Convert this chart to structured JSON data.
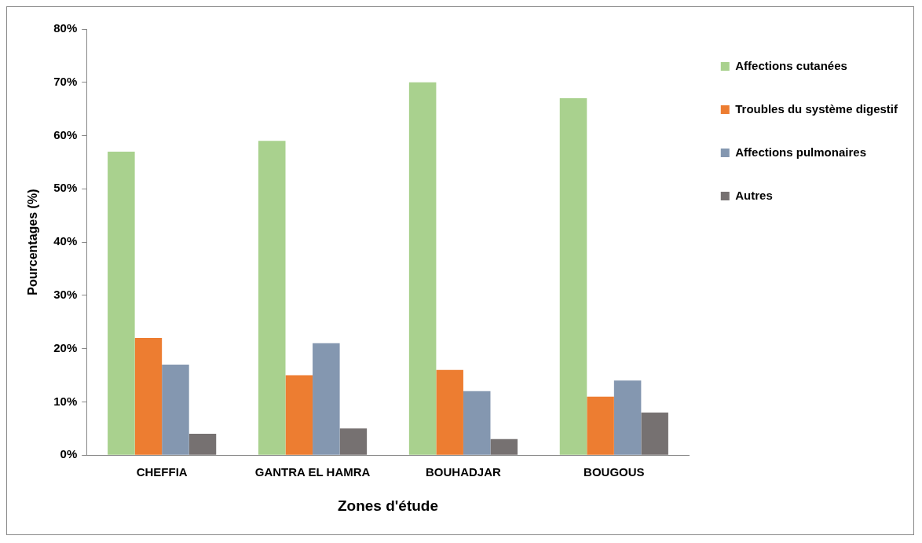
{
  "chart_data": {
    "type": "bar",
    "xlabel": "Zones d'étude",
    "ylabel": "Pourcentages (%)",
    "categories": [
      "CHEFFIA",
      "GANTRA EL HAMRA",
      "BOUHADJAR",
      "BOUGOUS"
    ],
    "series": [
      {
        "name": "Affections cutanées",
        "color": "#a9d18e",
        "values": [
          57,
          59,
          70,
          67
        ]
      },
      {
        "name": "Troubles du système digestif",
        "color": "#ed7d31",
        "values": [
          22,
          15,
          16,
          11
        ]
      },
      {
        "name": "Affections pulmonaires",
        "color": "#8497b0",
        "values": [
          17,
          21,
          12,
          14
        ]
      },
      {
        "name": "Autres",
        "color": "#767171",
        "values": [
          4,
          5,
          3,
          8
        ]
      }
    ],
    "ylim": [
      0,
      80
    ],
    "yticks": [
      {
        "value": 0,
        "label": "0%"
      },
      {
        "value": 10,
        "label": "10%"
      },
      {
        "value": 20,
        "label": "20%"
      },
      {
        "value": 30,
        "label": "30%"
      },
      {
        "value": 40,
        "label": "40%"
      },
      {
        "value": 50,
        "label": "50%"
      },
      {
        "value": 60,
        "label": "60%"
      },
      {
        "value": 70,
        "label": "70%"
      },
      {
        "value": 80,
        "label": "80%"
      }
    ],
    "grid": false,
    "legend": "right"
  }
}
